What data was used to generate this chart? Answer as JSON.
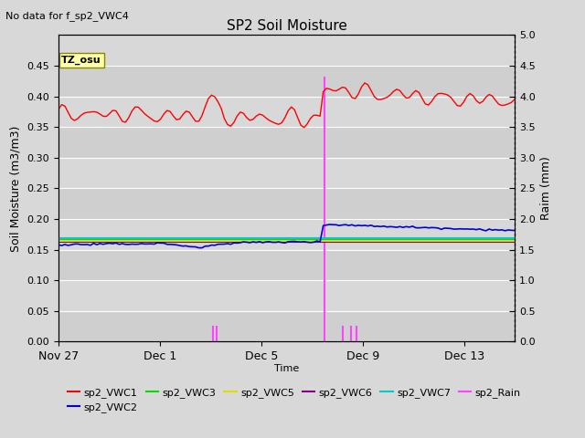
{
  "title": "SP2 Soil Moisture",
  "subtitle": "No data for f_sp2_VWC4",
  "ylabel_left": "Soil Moisture (m3/m3)",
  "ylabel_right": "Raim (mm)",
  "xlabel": "Time",
  "tz_label": "TZ_osu",
  "ylim_left": [
    0.0,
    0.5
  ],
  "ylim_right": [
    0.0,
    5.0
  ],
  "yticks_left": [
    0.0,
    0.05,
    0.1,
    0.15,
    0.2,
    0.25,
    0.3,
    0.35,
    0.4,
    0.45
  ],
  "yticks_right": [
    0.0,
    0.5,
    1.0,
    1.5,
    2.0,
    2.5,
    3.0,
    3.5,
    4.0,
    4.5,
    5.0
  ],
  "bg_color": "#d8d8d8",
  "plot_bg_color": "#d8d8d8",
  "grid_color": "#ffffff",
  "vwc1_color": "#ff0000",
  "vwc2_color": "#0000dd",
  "vwc3_color": "#00dd00",
  "vwc5_color": "#dddd00",
  "vwc6_color": "#880088",
  "vwc7_color": "#00cccc",
  "rain_color": "#ff44ff",
  "tz_box_color": "#ffffaa",
  "tz_box_edge": "#888800",
  "xlim": [
    0,
    18
  ],
  "xtick_positions": [
    0,
    4,
    8,
    12,
    16
  ],
  "xtick_labels": [
    "Nov 27",
    "Dec 1",
    "Dec 5",
    "Dec 9",
    "Dec 13"
  ],
  "legend_row1": [
    "sp2_VWC1",
    "sp2_VWC2",
    "sp2_VWC3",
    "sp2_VWC5",
    "sp2_VWC6",
    "sp2_VWC7"
  ],
  "legend_row2": [
    "sp2_Rain"
  ]
}
